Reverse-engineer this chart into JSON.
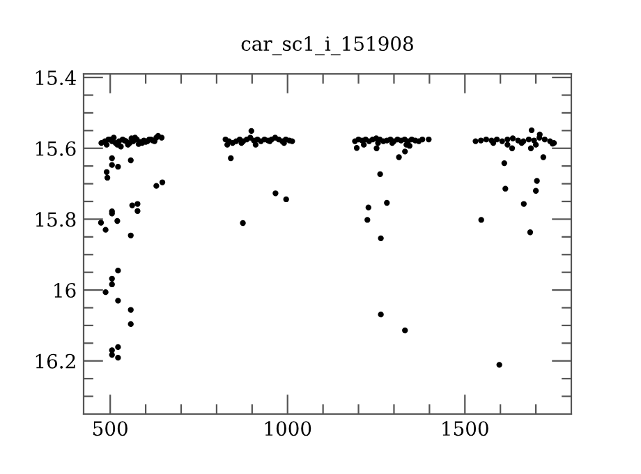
{
  "chart_data": {
    "type": "scatter",
    "title": "car_sc1_i_151908",
    "marker": "circle",
    "color": "#000000",
    "xlim": [
      425,
      1800
    ],
    "ylim": [
      16.35,
      15.39
    ],
    "xticks": [
      {
        "value": 500,
        "label": "500"
      },
      {
        "value": 600,
        "label": null
      },
      {
        "value": 700,
        "label": null
      },
      {
        "value": 800,
        "label": null
      },
      {
        "value": 900,
        "label": null
      },
      {
        "value": 1000,
        "label": "1000"
      },
      {
        "value": 1100,
        "label": null
      },
      {
        "value": 1200,
        "label": null
      },
      {
        "value": 1300,
        "label": null
      },
      {
        "value": 1400,
        "label": null
      },
      {
        "value": 1500,
        "label": "1500"
      },
      {
        "value": 1600,
        "label": null
      },
      {
        "value": 1700,
        "label": null
      }
    ],
    "yticks": [
      {
        "value": 15.4,
        "label": "15.4"
      },
      {
        "value": 15.45,
        "label": null
      },
      {
        "value": 15.5,
        "label": null
      },
      {
        "value": 15.55,
        "label": null
      },
      {
        "value": 15.6,
        "label": "15.6"
      },
      {
        "value": 15.65,
        "label": null
      },
      {
        "value": 15.7,
        "label": null
      },
      {
        "value": 15.75,
        "label": null
      },
      {
        "value": 15.8,
        "label": "15.8"
      },
      {
        "value": 15.85,
        "label": null
      },
      {
        "value": 15.9,
        "label": null
      },
      {
        "value": 15.95,
        "label": null
      },
      {
        "value": 16,
        "label": "16"
      },
      {
        "value": 16.05,
        "label": null
      },
      {
        "value": 16.1,
        "label": null
      },
      {
        "value": 16.15,
        "label": null
      },
      {
        "value": 16.2,
        "label": "16.2"
      },
      {
        "value": 16.25,
        "label": null
      },
      {
        "value": 16.3,
        "label": null
      }
    ],
    "x": [
      475,
      485,
      495,
      505,
      515,
      525,
      535,
      545,
      555,
      565,
      575,
      585,
      595,
      605,
      615,
      625,
      635,
      645,
      490,
      510,
      530,
      550,
      570,
      590,
      610,
      630,
      500,
      520,
      540,
      560,
      580,
      600,
      620,
      474,
      487,
      490,
      492,
      505,
      505,
      522,
      505,
      505,
      520,
      558,
      562,
      577,
      577,
      558,
      630,
      647,
      487,
      505,
      505,
      522,
      522,
      558,
      558,
      505,
      505,
      522,
      522,
      825,
      835,
      845,
      855,
      865,
      875,
      885,
      895,
      905,
      915,
      925,
      935,
      945,
      955,
      965,
      975,
      985,
      995,
      1005,
      1013,
      830,
      870,
      910,
      950,
      990,
      840,
      898,
      874,
      966,
      996,
      1190,
      1200,
      1210,
      1220,
      1230,
      1240,
      1250,
      1260,
      1270,
      1280,
      1290,
      1300,
      1310,
      1320,
      1330,
      1340,
      1350,
      1360,
      1370,
      1380,
      1398,
      1215,
      1255,
      1295,
      1335,
      1195,
      1251,
      1261,
      1228,
      1225,
      1280,
      1263,
      1263,
      1331,
      1314,
      1331,
      1344,
      1530,
      1545,
      1560,
      1575,
      1590,
      1605,
      1620,
      1635,
      1650,
      1665,
      1680,
      1695,
      1710,
      1725,
      1740,
      1751,
      1580,
      1620,
      1660,
      1700,
      1546,
      1611,
      1614,
      1633,
      1666,
      1684,
      1703,
      1700,
      1721,
      1686,
      1688,
      1711,
      1597,
      1747
    ],
    "values": [
      15.585,
      15.58,
      15.575,
      15.58,
      15.585,
      15.58,
      15.575,
      15.58,
      15.585,
      15.58,
      15.575,
      15.582,
      15.578,
      15.58,
      15.575,
      15.58,
      15.565,
      15.57,
      15.59,
      15.57,
      15.595,
      15.59,
      15.57,
      15.585,
      15.575,
      15.57,
      15.575,
      15.59,
      15.578,
      15.572,
      15.588,
      15.582,
      15.578,
      15.81,
      15.83,
      15.667,
      15.683,
      15.628,
      15.647,
      15.652,
      15.778,
      15.784,
      15.805,
      15.634,
      15.761,
      15.757,
      15.777,
      15.846,
      15.706,
      15.696,
      16.006,
      15.968,
      15.984,
      15.945,
      16.03,
      16.056,
      16.096,
      16.17,
      16.183,
      16.161,
      16.191,
      15.575,
      15.58,
      15.585,
      15.58,
      15.575,
      15.58,
      15.575,
      15.57,
      15.578,
      15.575,
      15.58,
      15.575,
      15.578,
      15.575,
      15.57,
      15.575,
      15.58,
      15.575,
      15.578,
      15.58,
      15.59,
      15.585,
      15.59,
      15.58,
      15.585,
      15.628,
      15.551,
      15.811,
      15.727,
      15.744,
      15.58,
      15.575,
      15.578,
      15.575,
      15.58,
      15.575,
      15.572,
      15.575,
      15.58,
      15.578,
      15.575,
      15.58,
      15.575,
      15.578,
      15.575,
      15.58,
      15.575,
      15.578,
      15.58,
      15.575,
      15.575,
      15.59,
      15.585,
      15.585,
      15.59,
      15.599,
      15.6,
      15.673,
      15.767,
      15.802,
      15.754,
      15.854,
      16.069,
      16.114,
      15.625,
      15.609,
      15.593,
      15.58,
      15.578,
      15.575,
      15.578,
      15.575,
      15.58,
      15.575,
      15.572,
      15.578,
      15.58,
      15.575,
      15.578,
      15.57,
      15.575,
      15.58,
      15.585,
      15.585,
      15.59,
      15.585,
      15.59,
      15.802,
      15.642,
      15.714,
      15.6,
      15.757,
      15.837,
      15.692,
      15.72,
      15.625,
      15.6,
      15.549,
      15.561,
      16.211,
      15.587
    ]
  }
}
